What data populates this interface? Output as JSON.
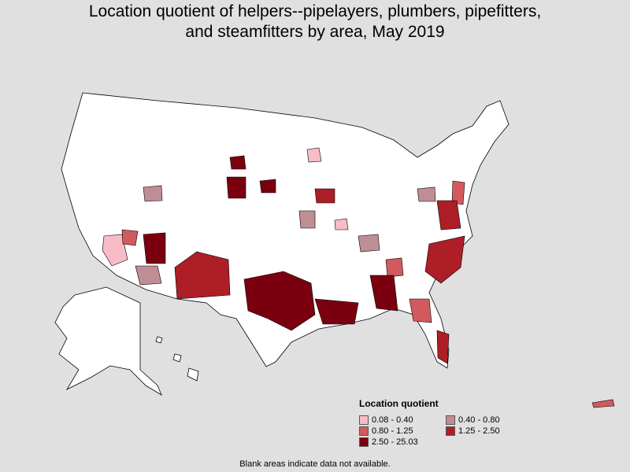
{
  "title": "Location quotient of helpers--pipelayers, plumbers, pipefitters, and steamfitters by area, May 2019",
  "legend": {
    "title": "Location quotient",
    "items": [
      {
        "label": "0.08 - 0.40",
        "color": "#f7bcc6"
      },
      {
        "label": "0.40 - 0.80",
        "color": "#bf8e95"
      },
      {
        "label": "0.80 - 1.25",
        "color": "#d25a5f"
      },
      {
        "label": "1.25 - 2.50",
        "color": "#ad1e26"
      },
      {
        "label": "2.50 - 25.03",
        "color": "#7a0010"
      }
    ]
  },
  "note": "Blank areas indicate data not available."
}
